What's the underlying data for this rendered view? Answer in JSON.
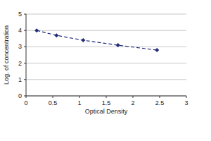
{
  "chart_data": {
    "type": "line",
    "x_label": "Optical Density",
    "y_label": "Log. of concentration",
    "x": [
      0.2,
      0.57,
      1.07,
      1.72,
      2.45
    ],
    "values": [
      4.0,
      3.7,
      3.4,
      3.1,
      2.8
    ],
    "color": "#1f2a7a",
    "marker": "diamond",
    "line_style": "dashed",
    "xlim": [
      0,
      3
    ],
    "xticks": [
      0,
      0.5,
      1,
      1.5,
      2,
      2.5,
      3
    ],
    "ylim": [
      0,
      5
    ],
    "yticks": [
      0,
      1,
      2,
      3,
      4,
      5
    ],
    "grid": true
  }
}
